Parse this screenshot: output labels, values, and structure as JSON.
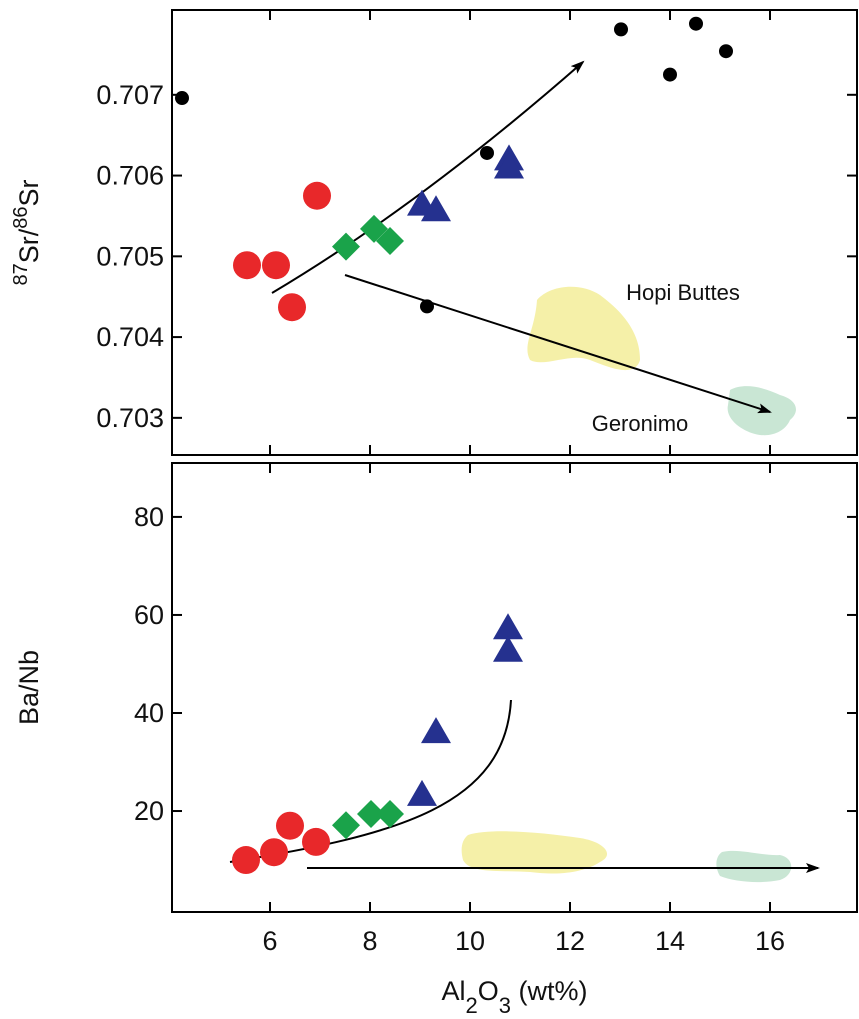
{
  "chart_data": [
    {
      "type": "scatter",
      "ylabel": [
        "87",
        "Sr/",
        "86",
        "Sr"
      ],
      "xlim": [
        4.04,
        17.74
      ],
      "ylim": [
        0.70254,
        0.70805
      ],
      "xticks": [
        6,
        8,
        10,
        12,
        14,
        16
      ],
      "show_xtick_labels": false,
      "yticks": [
        0.703,
        0.704,
        0.705,
        0.706,
        0.707
      ],
      "series": [
        {
          "color": "#e8282a",
          "marker": "circle",
          "x": [
            5.54,
            6.12,
            6.44,
            6.94
          ],
          "values": [
            0.70489,
            0.70489,
            0.70437,
            0.70575
          ]
        },
        {
          "color": "#1aa34a",
          "marker": "diamond",
          "x": [
            7.52,
            8.08,
            8.4
          ],
          "values": [
            0.70512,
            0.70534,
            0.70519
          ]
        },
        {
          "color": "#25318f",
          "marker": "triangle",
          "x": [
            9.04,
            9.32,
            10.78,
            10.78
          ],
          "values": [
            0.70564,
            0.70557,
            0.7062,
            0.7061
          ]
        },
        {
          "color": "#000000",
          "marker": "dot",
          "x": [
            4.24,
            9.14,
            10.34,
            13.02,
            14.0,
            14.52,
            15.12
          ],
          "values": [
            0.70696,
            0.70438,
            0.70628,
            0.70781,
            0.70725,
            0.70788,
            0.70754
          ]
        }
      ],
      "annotations": [
        "Hopi Buttes",
        "Geronimo"
      ]
    },
    {
      "type": "scatter",
      "ylabel": [
        "Ba/Nb"
      ],
      "xlabel": [
        "Al",
        "2",
        "O",
        "3",
        " (wt%)"
      ],
      "xlim": [
        4.04,
        17.74
      ],
      "ylim": [
        -0.6,
        91
      ],
      "xticks": [
        6,
        8,
        10,
        12,
        14,
        16
      ],
      "show_xtick_labels": true,
      "yticks": [
        20,
        40,
        60,
        80
      ],
      "series": [
        {
          "color": "#e8282a",
          "marker": "circle",
          "x": [
            5.52,
            6.08,
            6.4,
            6.92
          ],
          "values": [
            10,
            11.6,
            17,
            13.7
          ]
        },
        {
          "color": "#1aa34a",
          "marker": "diamond",
          "x": [
            7.52,
            8.02,
            8.4
          ],
          "values": [
            17.1,
            19.4,
            19.4
          ]
        },
        {
          "color": "#25318f",
          "marker": "triangle",
          "x": [
            9.04,
            9.32,
            10.76,
            10.76
          ],
          "values": [
            23.3,
            36.1,
            57.3,
            52.7
          ]
        }
      ]
    }
  ]
}
